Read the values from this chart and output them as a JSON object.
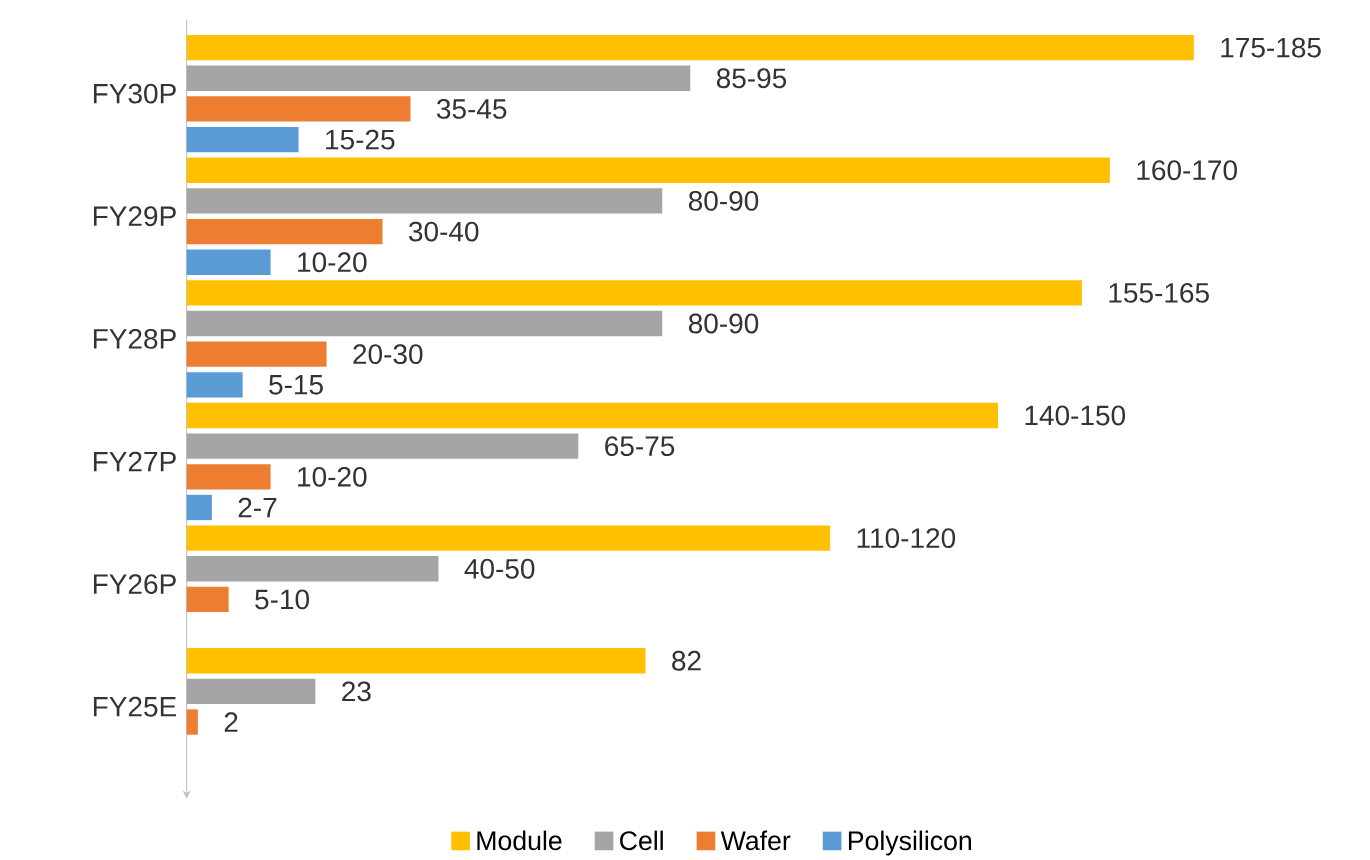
{
  "chart_data": {
    "type": "bar",
    "orientation": "horizontal",
    "categories": [
      "FY30P",
      "FY29P",
      "FY28P",
      "FY27P",
      "FY26P",
      "FY25E"
    ],
    "series": [
      {
        "name": "Module",
        "color": "#ffc000",
        "values": [
          180,
          165,
          160,
          145,
          115,
          82
        ],
        "value_labels": [
          "175-185",
          "160-170",
          "155-165",
          "140-150",
          "110-120",
          "82"
        ]
      },
      {
        "name": "Cell",
        "color": "#a5a5a5",
        "values": [
          90,
          85,
          85,
          70,
          45,
          23
        ],
        "value_labels": [
          "85-95",
          "80-90",
          "80-90",
          "65-75",
          "40-50",
          "23"
        ]
      },
      {
        "name": "Wafer",
        "color": "#ed7d31",
        "values": [
          40,
          35,
          25,
          15,
          7.5,
          2
        ],
        "value_labels": [
          "35-45",
          "30-40",
          "20-30",
          "10-20",
          "5-10",
          "2"
        ]
      },
      {
        "name": "Polysilicon",
        "color": "#5b9bd5",
        "values": [
          20,
          15,
          10,
          4.5,
          null,
          null
        ],
        "value_labels": [
          "15-25",
          "10-20",
          "5-15",
          "2-7",
          null,
          null
        ]
      }
    ],
    "legend": "bottom"
  }
}
